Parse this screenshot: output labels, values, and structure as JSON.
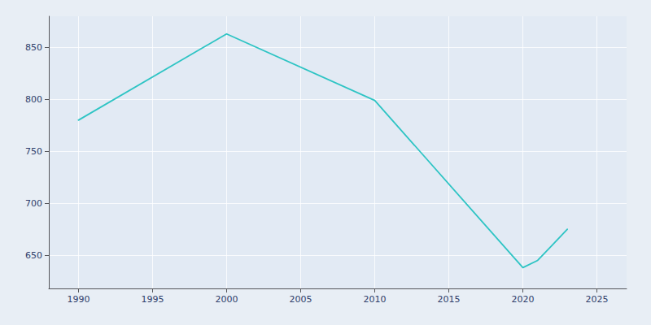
{
  "chart_data": {
    "type": "line",
    "x": [
      1990,
      2000,
      2010,
      2020,
      2021,
      2022,
      2023
    ],
    "values": [
      780,
      863,
      799,
      638,
      645,
      660,
      675
    ],
    "color": "#2EC4C4",
    "xlim": [
      1988,
      2027
    ],
    "xticks": [
      1990,
      1995,
      2000,
      2005,
      2010,
      2015,
      2020,
      2025
    ],
    "ylim": [
      618,
      880
    ],
    "yticks": [
      650,
      700,
      750,
      800,
      850
    ],
    "grid": true
  }
}
